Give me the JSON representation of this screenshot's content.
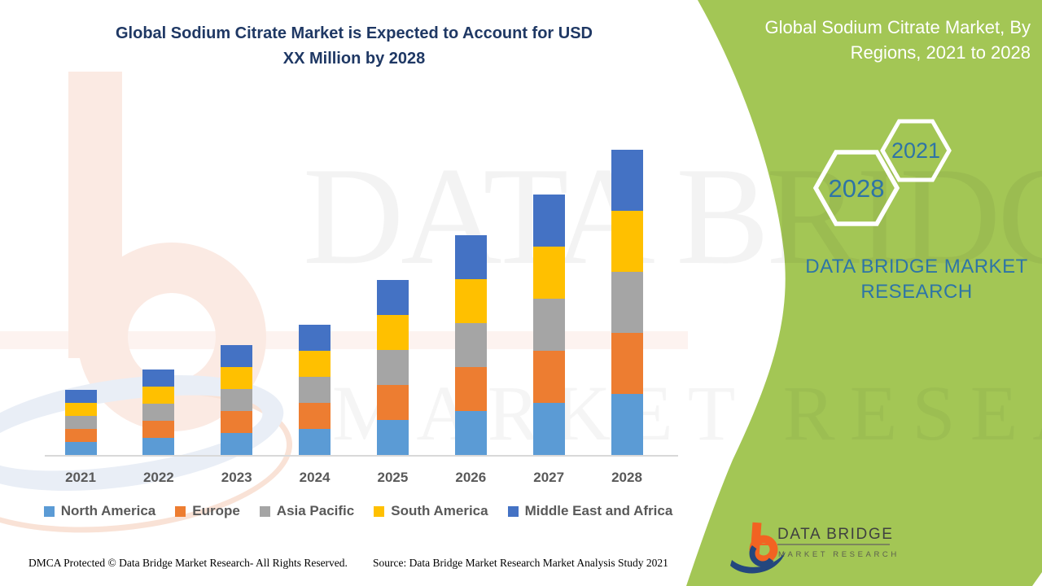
{
  "header": {
    "title_line1": "Global Sodium Citrate Market is Expected to Account for USD",
    "title_line2": "XX Million by 2028"
  },
  "side_panel": {
    "title_line1": "Global Sodium Citrate Market, By",
    "title_line2": "Regions, 2021 to 2028",
    "hexagon_top_year": "2021",
    "hexagon_bottom_year": "2028",
    "brand_line1": "DATA BRIDGE MARKET",
    "brand_line2": "RESEARCH",
    "background_color": "#A3C655",
    "accent_text_color": "#2E75A6"
  },
  "chart_data": {
    "type": "bar",
    "stacked": true,
    "title": "Global Sodium Citrate Market is Expected to Account for USD XX Million by 2028",
    "x": [
      "2021",
      "2022",
      "2023",
      "2024",
      "2025",
      "2026",
      "2027",
      "2028"
    ],
    "series": [
      {
        "name": "North America",
        "color": "#5B9BD5",
        "values": [
          16,
          21,
          27,
          32,
          43,
          54,
          64,
          75
        ]
      },
      {
        "name": "Europe",
        "color": "#ED7D31",
        "values": [
          16,
          21,
          27,
          32,
          43,
          54,
          64,
          75
        ]
      },
      {
        "name": "Asia Pacific",
        "color": "#A5A5A5",
        "values": [
          16,
          21,
          27,
          32,
          43,
          54,
          64,
          75
        ]
      },
      {
        "name": "South America",
        "color": "#FFC000",
        "values": [
          16,
          21,
          27,
          32,
          43,
          54,
          64,
          75
        ]
      },
      {
        "name": "Middle East and Africa",
        "color": "#4472C4",
        "values": [
          16,
          21,
          27,
          32,
          43,
          54,
          64,
          75
        ]
      }
    ],
    "xlabel": "",
    "ylabel": "",
    "ylim": [
      0,
      380
    ],
    "grid": false,
    "legend_position": "bottom",
    "value_axis_visible": false
  },
  "watermark": {
    "line1": "DATA BRIDGE",
    "line2": "MARKET RESEARCH"
  },
  "brand_logo": {
    "name": "DATA BRIDGE",
    "subtitle": "MARKET RESEARCH"
  },
  "footer": {
    "dmca": "DMCA Protected © Data Bridge Market Research- All Rights Reserved.",
    "source": "Source: Data Bridge Market Research Market Analysis Study 2021"
  }
}
